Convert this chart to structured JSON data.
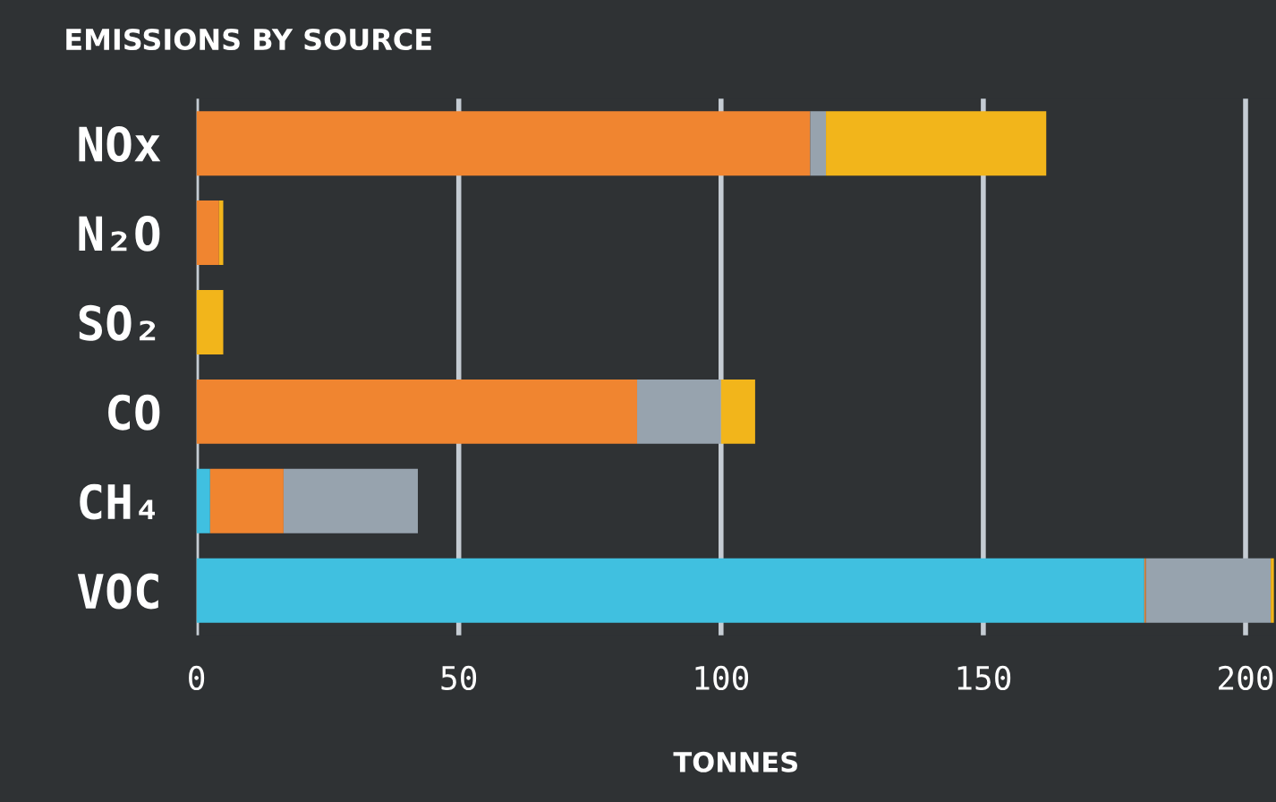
{
  "chart_data": {
    "type": "bar",
    "orientation": "horizontal",
    "stacked": true,
    "title": "EMISSIONS BY SOURCE",
    "xlabel": "TONNES",
    "categories": [
      "NOx",
      "N₂O",
      "SO₂",
      "CO",
      "CH₄",
      "VOC"
    ],
    "series": [
      {
        "color": "#40c0e0",
        "values": [
          0,
          0,
          0,
          0,
          2.6,
          180.7
        ]
      },
      {
        "color": "#f08530",
        "values": [
          117,
          4.3,
          0,
          84,
          14,
          0.3
        ]
      },
      {
        "color": "#97a3ae",
        "values": [
          3,
          0,
          0,
          16,
          25.6,
          23.8
        ]
      },
      {
        "color": "#f2b51b",
        "values": [
          42,
          0.8,
          5.1,
          6.5,
          0,
          0.6
        ]
      }
    ],
    "xlim": [
      0,
      205.8
    ],
    "xticks": [
      0,
      50,
      100,
      150,
      200
    ],
    "grid": "x",
    "legend": false
  }
}
